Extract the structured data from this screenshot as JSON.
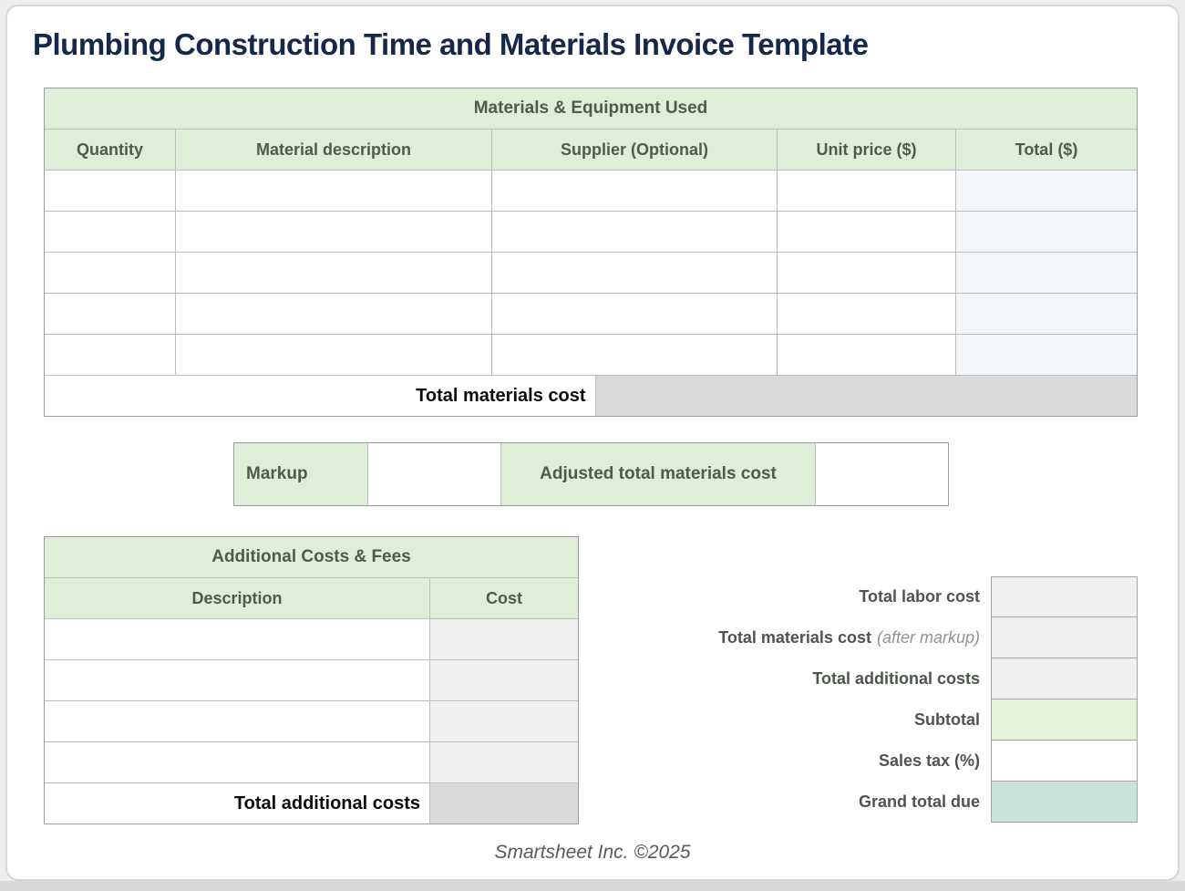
{
  "page": {
    "title": "Plumbing Construction Time and Materials Invoice Template",
    "footer": "Smartsheet Inc. ©2025"
  },
  "colors": {
    "title_navy": "#152849",
    "section_header_green": "#ddefd6",
    "section_header_text": "#4d5c4a",
    "computed_total_gray": "#d9d9d9",
    "cost_column_gray": "#f0f0ee",
    "total_column_tint": "#f3f7fa",
    "subtotal_green": "#e4f2da",
    "grand_total_teal": "#c9e3da",
    "table_border": "#9b9b9b"
  },
  "materials_table": {
    "title": "Materials & Equipment Used",
    "columns": [
      "Quantity",
      "Material description",
      "Supplier (Optional)",
      "Unit price ($)",
      "Total ($)"
    ],
    "rows": [
      [
        "",
        "",
        "",
        "",
        ""
      ],
      [
        "",
        "",
        "",
        "",
        ""
      ],
      [
        "",
        "",
        "",
        "",
        ""
      ],
      [
        "",
        "",
        "",
        "",
        ""
      ],
      [
        "",
        "",
        "",
        "",
        ""
      ]
    ],
    "total_label": "Total materials cost",
    "total_value": ""
  },
  "markup_section": {
    "markup_label": "Markup",
    "markup_value": "",
    "adjusted_label": "Adjusted total materials cost",
    "adjusted_value": ""
  },
  "additional_costs_table": {
    "title": "Additional Costs & Fees",
    "columns": [
      "Description",
      "Cost"
    ],
    "rows": [
      [
        "",
        ""
      ],
      [
        "",
        ""
      ],
      [
        "",
        ""
      ],
      [
        "",
        ""
      ]
    ],
    "total_label": "Total additional costs",
    "total_value": ""
  },
  "summary": {
    "rows": [
      {
        "label": "Total labor cost",
        "note": "",
        "value": "",
        "style": "gray"
      },
      {
        "label": "Total materials cost",
        "note": "(after markup)",
        "value": "",
        "style": "gray"
      },
      {
        "label": "Total additional costs",
        "note": "",
        "value": "",
        "style": "gray"
      },
      {
        "label": "Subtotal",
        "note": "",
        "value": "",
        "style": "green"
      },
      {
        "label": "Sales tax (%)",
        "note": "",
        "value": "",
        "style": "white"
      },
      {
        "label": "Grand total due",
        "note": "",
        "value": "",
        "style": "teal"
      }
    ]
  }
}
